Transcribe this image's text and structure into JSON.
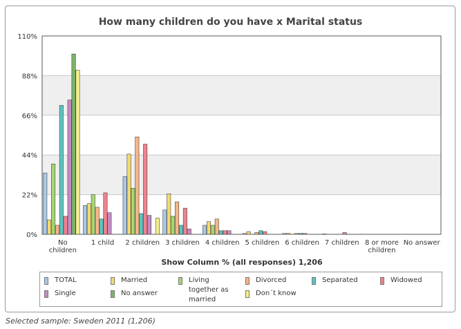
{
  "chart_data": {
    "type": "bar",
    "title": "How many children do you have  x  Marital status",
    "xlabel": "Show Column % (all responses) 1,206",
    "ylabel": "",
    "ylim": [
      0,
      110
    ],
    "yticks": [
      "0%",
      "22%",
      "44%",
      "66%",
      "88%",
      "110%"
    ],
    "ytick_values": [
      0,
      22,
      44,
      66,
      88,
      110
    ],
    "categories": [
      [
        "No",
        "children"
      ],
      [
        "1 child"
      ],
      [
        "2 children"
      ],
      [
        "3 children"
      ],
      [
        "4 children"
      ],
      [
        "5 children"
      ],
      [
        "6 children"
      ],
      [
        "7 children"
      ],
      [
        "8 or more",
        "children"
      ],
      [
        "No answer"
      ]
    ],
    "series": [
      {
        "name": "TOTAL",
        "legend": [
          "TOTAL"
        ],
        "color": "#a9c9ea",
        "values": [
          34,
          16,
          32,
          13.5,
          5,
          0.5,
          0.5,
          0.2,
          0,
          0
        ]
      },
      {
        "name": "Married",
        "legend": [
          "Married"
        ],
        "color": "#f2da6e",
        "values": [
          8,
          17,
          44.5,
          22.5,
          7,
          1.5,
          0.5,
          0,
          0,
          0
        ]
      },
      {
        "name": "Living together as married",
        "legend": [
          "Living",
          "together as",
          "married"
        ],
        "color": "#a6d672",
        "values": [
          39,
          22,
          25.5,
          10,
          5,
          0,
          0,
          0,
          0,
          0
        ]
      },
      {
        "name": "Divorced",
        "legend": [
          "Divorced"
        ],
        "color": "#f5b688",
        "values": [
          5,
          15,
          54,
          18,
          8.5,
          1,
          0.5,
          0,
          0,
          0
        ]
      },
      {
        "name": "Separated",
        "legend": [
          "Separated"
        ],
        "color": "#5cc4c0",
        "values": [
          71.5,
          8.5,
          11.5,
          5,
          2,
          2,
          0.5,
          0,
          0,
          0
        ]
      },
      {
        "name": "Widowed",
        "legend": [
          "Widowed"
        ],
        "color": "#f0828f",
        "values": [
          10,
          23,
          50,
          14.5,
          2,
          1.5,
          0.5,
          1,
          0,
          0
        ]
      },
      {
        "name": "Single",
        "legend": [
          "Single"
        ],
        "color": "#c58bc3",
        "values": [
          74.5,
          12,
          10.5,
          3,
          2,
          0,
          0,
          0,
          0,
          0
        ]
      },
      {
        "name": "No answer",
        "legend": [
          "No answer"
        ],
        "color": "#7eb36a",
        "values": [
          100,
          0,
          0,
          0,
          0,
          0,
          0,
          0,
          0,
          0
        ]
      },
      {
        "name": "Don´t know",
        "legend": [
          "Don´t know"
        ],
        "color": "#f3ef8e",
        "values": [
          91,
          0,
          9,
          0,
          0,
          0,
          0,
          0,
          0,
          0
        ]
      }
    ]
  },
  "caption": "Selected sample: Sweden 2011 (1,206)"
}
